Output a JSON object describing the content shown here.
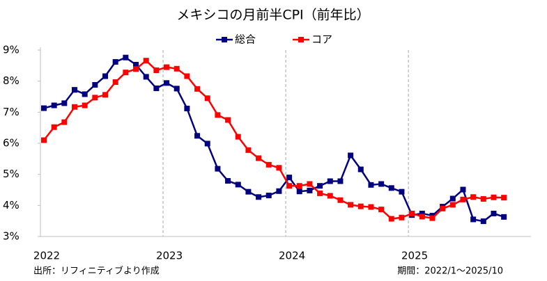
{
  "chart_data": {
    "type": "line",
    "title": "メキシコの月前半CPI（前年比）",
    "source": "出所：リフィニティブより作成",
    "period": "期間：2022/1～2025/10",
    "categories": [
      "2022",
      null,
      null,
      null,
      null,
      null,
      null,
      null,
      null,
      null,
      null,
      null,
      "2023",
      null,
      null,
      null,
      null,
      null,
      null,
      null,
      null,
      null,
      null,
      null,
      "2024",
      null,
      null,
      null,
      null,
      null,
      null,
      null,
      null,
      null,
      null,
      null,
      "2025",
      null,
      null,
      null,
      null,
      null,
      null,
      null,
      null,
      null
    ],
    "series": [
      {
        "name": "総合",
        "color": "#000080",
        "values": [
          7.13,
          7.22,
          7.29,
          7.72,
          7.58,
          7.88,
          8.16,
          8.62,
          8.76,
          8.53,
          8.14,
          7.77,
          7.94,
          7.76,
          7.12,
          6.24,
          5.99,
          5.18,
          4.79,
          4.67,
          4.44,
          4.27,
          4.32,
          4.46,
          4.9,
          4.45,
          4.48,
          4.63,
          4.78,
          4.78,
          5.61,
          5.16,
          4.66,
          4.69,
          4.56,
          4.44,
          3.69,
          3.74,
          3.67,
          3.96,
          4.22,
          4.51,
          3.55,
          3.49,
          3.74,
          3.63
        ]
      },
      {
        "name": "コア",
        "color": "#ff0000",
        "values": [
          6.1,
          6.52,
          6.68,
          7.17,
          7.22,
          7.47,
          7.56,
          7.97,
          8.28,
          8.39,
          8.66,
          8.35,
          8.45,
          8.4,
          8.16,
          7.75,
          7.45,
          6.91,
          6.75,
          6.21,
          5.78,
          5.52,
          5.31,
          5.21,
          4.63,
          4.63,
          4.69,
          4.39,
          4.31,
          4.17,
          4.02,
          3.97,
          3.95,
          3.87,
          3.57,
          3.61,
          3.74,
          3.64,
          3.59,
          3.9,
          4.02,
          4.19,
          4.27,
          4.21,
          4.26,
          4.25
        ]
      }
    ],
    "ylim": [
      3,
      9
    ],
    "yticks": [
      {
        "value": 3,
        "label": "3%"
      },
      {
        "value": 4,
        "label": "4%"
      },
      {
        "value": 5,
        "label": "5%"
      },
      {
        "value": 6,
        "label": "6%"
      },
      {
        "value": 7,
        "label": "7%"
      },
      {
        "value": 8,
        "label": "8%"
      },
      {
        "value": 9,
        "label": "9%"
      }
    ],
    "grid": true,
    "legend": "top"
  }
}
